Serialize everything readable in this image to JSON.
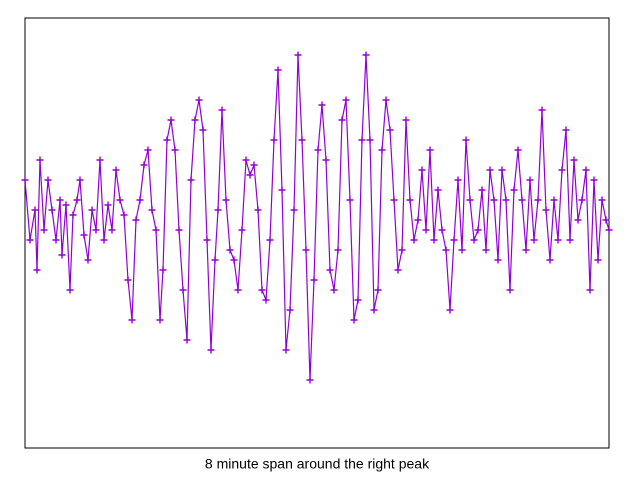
{
  "chart_data": {
    "type": "linepoints",
    "xlabel": "8 minute span around the right peak",
    "xlim": [
      0,
      584
    ],
    "ylim": [
      -215,
      215
    ],
    "color": "#9400d3",
    "x": [
      0,
      5,
      10,
      12,
      15,
      19,
      23,
      27,
      31,
      35,
      37,
      41,
      45,
      48,
      52,
      55,
      59,
      63,
      67,
      71,
      75,
      79,
      83,
      87,
      91,
      95,
      99,
      103,
      107,
      111,
      115,
      119,
      123,
      127,
      131,
      135,
      138,
      142,
      146,
      150,
      154,
      158,
      162,
      166,
      170,
      174,
      178,
      182,
      186,
      190,
      193,
      197,
      201,
      205,
      209,
      213,
      217,
      221,
      225,
      229,
      233,
      237,
      241,
      245,
      249,
      253,
      257,
      261,
      265,
      269,
      273,
      277,
      281,
      285,
      289,
      293,
      297,
      301,
      305,
      309,
      313,
      317,
      321,
      325,
      329,
      333,
      337,
      341,
      345,
      349,
      353,
      357,
      361,
      365,
      369,
      373,
      377,
      381,
      385,
      389,
      393,
      397,
      401,
      405,
      409,
      413,
      417,
      421,
      425,
      429,
      433,
      437,
      441,
      445,
      449,
      453,
      457,
      461,
      465,
      469,
      473,
      477,
      481,
      485,
      489,
      493,
      497,
      501,
      505,
      509,
      513,
      517,
      521,
      525,
      529,
      533,
      537,
      541,
      545,
      549,
      553,
      557,
      561,
      565,
      569,
      573,
      577,
      581,
      584
    ],
    "values": [
      53,
      -7,
      23,
      -37,
      73,
      3,
      53,
      23,
      -7,
      33,
      -22,
      28,
      -57,
      18,
      33,
      53,
      -2,
      -27,
      23,
      3,
      73,
      -7,
      28,
      3,
      63,
      33,
      18,
      -47,
      -87,
      13,
      33,
      68,
      83,
      23,
      3,
      -87,
      -37,
      93,
      113,
      83,
      3,
      -57,
      -107,
      53,
      113,
      133,
      103,
      -7,
      -117,
      -27,
      23,
      123,
      33,
      -17,
      -27,
      -57,
      3,
      73,
      58,
      68,
      23,
      -57,
      -67,
      -7,
      93,
      163,
      43,
      -117,
      -77,
      23,
      178,
      93,
      -17,
      -147,
      -47,
      83,
      128,
      73,
      -37,
      -57,
      -17,
      113,
      133,
      33,
      -87,
      -67,
      93,
      178,
      93,
      -77,
      -57,
      83,
      133,
      103,
      33,
      -37,
      -17,
      113,
      33,
      -7,
      13,
      63,
      3,
      83,
      -7,
      43,
      3,
      -17,
      -77,
      -7,
      53,
      -17,
      93,
      33,
      -7,
      3,
      43,
      -17,
      63,
      33,
      -27,
      63,
      33,
      -57,
      43,
      83,
      33,
      -17,
      53,
      -7,
      33,
      123,
      23,
      -27,
      33,
      -7,
      63,
      103,
      -7,
      73,
      13,
      33,
      63,
      -57,
      53,
      -27,
      33,
      13,
      3
    ]
  }
}
